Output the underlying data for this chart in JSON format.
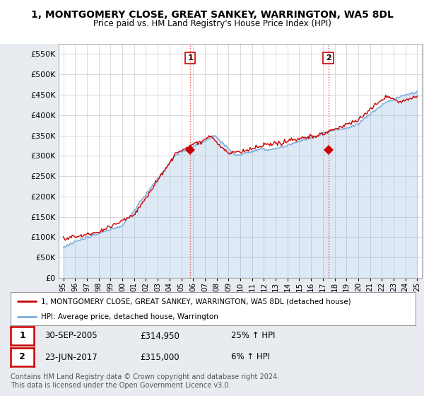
{
  "title": "1, MONTGOMERY CLOSE, GREAT SANKEY, WARRINGTON, WA5 8DL",
  "subtitle": "Price paid vs. HM Land Registry's House Price Index (HPI)",
  "ylabel_ticks": [
    "£0",
    "£50K",
    "£100K",
    "£150K",
    "£200K",
    "£250K",
    "£300K",
    "£350K",
    "£400K",
    "£450K",
    "£500K",
    "£550K"
  ],
  "ytick_values": [
    0,
    50000,
    100000,
    150000,
    200000,
    250000,
    300000,
    350000,
    400000,
    450000,
    500000,
    550000
  ],
  "ylim": [
    0,
    575000
  ],
  "sale1_date": 2005.75,
  "sale1_price": 314950,
  "sale2_date": 2017.47,
  "sale2_price": 315000,
  "line1_color": "#cc0000",
  "line2_color": "#7aabdb",
  "fill_color": "#ddeeff",
  "vline_color": "#dd4444",
  "legend_line1": "1, MONTGOMERY CLOSE, GREAT SANKEY, WARRINGTON, WA5 8DL (detached house)",
  "legend_line2": "HPI: Average price, detached house, Warrington",
  "table_row1": [
    "1",
    "30-SEP-2005",
    "£314,950",
    "25% ↑ HPI"
  ],
  "table_row2": [
    "2",
    "23-JUN-2017",
    "£315,000",
    "6% ↑ HPI"
  ],
  "footer": "Contains HM Land Registry data © Crown copyright and database right 2024.\nThis data is licensed under the Open Government Licence v3.0.",
  "bg_color": "#e8ecf0",
  "plot_bg_color": "#ffffff",
  "grid_color": "#cccccc"
}
